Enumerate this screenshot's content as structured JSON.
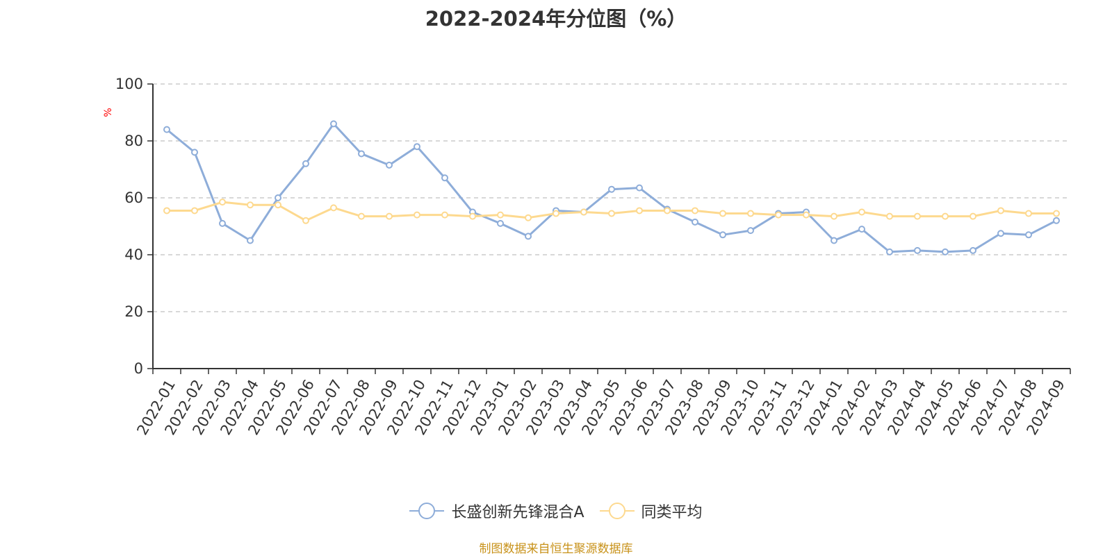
{
  "chart_data": {
    "type": "line",
    "title": "2022-2024年分位图（%）",
    "ylabel": "%",
    "ylim": [
      0,
      100
    ],
    "yticks": [
      0,
      20,
      40,
      60,
      80,
      100
    ],
    "grid": true,
    "legend_position": "bottom",
    "categories": [
      "2022-01",
      "2022-02",
      "2022-03",
      "2022-04",
      "2022-05",
      "2022-06",
      "2022-07",
      "2022-08",
      "2022-09",
      "2022-10",
      "2022-11",
      "2022-12",
      "2023-01",
      "2023-02",
      "2023-03",
      "2023-04",
      "2023-05",
      "2023-06",
      "2023-07",
      "2023-08",
      "2023-09",
      "2023-10",
      "2023-11",
      "2023-12",
      "2024-01",
      "2024-02",
      "2024-03",
      "2024-04",
      "2024-05",
      "2024-06",
      "2024-07",
      "2024-08",
      "2024-09"
    ],
    "series": [
      {
        "name": "长盛创新先锋混合A",
        "color": "#8eadd9",
        "values": [
          84,
          76,
          51,
          45,
          60,
          72,
          86,
          75.5,
          71.5,
          78,
          67,
          55,
          51,
          46.5,
          55.5,
          55,
          63,
          63.5,
          56,
          51.5,
          47,
          48.5,
          54.5,
          55,
          45,
          49,
          41,
          41.5,
          41,
          41.5,
          47.5,
          47,
          52
        ]
      },
      {
        "name": "同类平均",
        "color": "#fdd98f",
        "values": [
          55.5,
          55.5,
          58.5,
          57.5,
          57.5,
          52,
          56.5,
          53.5,
          53.5,
          54,
          54,
          53.5,
          54,
          53,
          54.5,
          55,
          54.5,
          55.5,
          55.5,
          55.5,
          54.5,
          54.5,
          54,
          54,
          53.5,
          55,
          53.5,
          53.5,
          53.5,
          53.5,
          55.5,
          54.5,
          54.5
        ]
      }
    ]
  },
  "source_note": "制图数据来自恒生聚源数据库"
}
